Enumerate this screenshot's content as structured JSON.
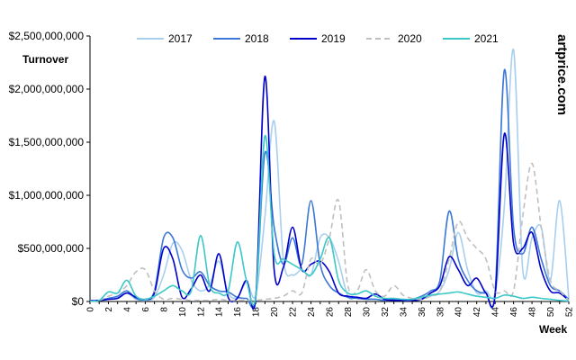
{
  "chart_data": {
    "type": "line",
    "ylabel": "Turnover",
    "xlabel": "Week",
    "watermark": "artprice.com",
    "ylim": [
      0,
      2500000000
    ],
    "yticks": [
      0,
      500000000,
      1000000000,
      1500000000,
      2000000000,
      2500000000
    ],
    "ytick_labels": [
      "$0",
      "$500,000,000",
      "$1,000,000,000",
      "$1,500,000,000",
      "$2,000,000,000",
      "$2,500,000,000"
    ],
    "xlim": [
      0,
      52
    ],
    "xticks": [
      0,
      2,
      4,
      6,
      8,
      10,
      12,
      14,
      16,
      18,
      20,
      22,
      24,
      26,
      28,
      30,
      32,
      34,
      36,
      38,
      40,
      42,
      44,
      46,
      48,
      50,
      52
    ],
    "grid": false,
    "legend_position": "top",
    "x": [
      0,
      1,
      2,
      3,
      4,
      5,
      6,
      7,
      8,
      9,
      10,
      11,
      12,
      13,
      14,
      15,
      16,
      17,
      18,
      19,
      20,
      21,
      22,
      23,
      24,
      25,
      26,
      27,
      28,
      29,
      30,
      31,
      32,
      33,
      34,
      35,
      36,
      37,
      38,
      39,
      40,
      41,
      42,
      43,
      44,
      45,
      46,
      47,
      48,
      49,
      50,
      51,
      52
    ],
    "series": [
      {
        "name": "2017",
        "color": "#a9cfee",
        "dash": false,
        "values": [
          5,
          10,
          20,
          40,
          80,
          20,
          10,
          40,
          250,
          550,
          480,
          200,
          100,
          160,
          380,
          80,
          40,
          180,
          60,
          800,
          1700,
          400,
          250,
          300,
          250,
          600,
          600,
          380,
          50,
          40,
          30,
          20,
          10,
          20,
          10,
          10,
          30,
          50,
          100,
          300,
          650,
          300,
          80,
          100,
          80,
          900,
          2370,
          300,
          600,
          700,
          200,
          950,
          30
        ]
      },
      {
        "name": "2018",
        "color": "#3c78d8",
        "dash": false,
        "values": [
          5,
          10,
          30,
          50,
          100,
          30,
          20,
          100,
          600,
          600,
          300,
          220,
          280,
          150,
          100,
          90,
          40,
          30,
          50,
          1400,
          700,
          350,
          600,
          350,
          950,
          350,
          150,
          80,
          40,
          30,
          20,
          20,
          10,
          20,
          10,
          20,
          50,
          100,
          200,
          850,
          400,
          200,
          100,
          80,
          100,
          2180,
          700,
          450,
          700,
          400,
          150,
          100,
          20
        ]
      },
      {
        "name": "2019",
        "color": "#0000c8",
        "dash": false,
        "values": [
          10,
          10,
          20,
          30,
          80,
          40,
          20,
          80,
          500,
          400,
          40,
          120,
          250,
          100,
          450,
          40,
          30,
          200,
          40,
          2120,
          300,
          320,
          700,
          300,
          350,
          380,
          280,
          80,
          50,
          40,
          30,
          70,
          20,
          10,
          10,
          10,
          20,
          80,
          150,
          420,
          300,
          150,
          220,
          80,
          60,
          1580,
          550,
          500,
          650,
          300,
          100,
          80,
          10
        ]
      },
      {
        "name": "2020",
        "color": "#bfbfbf",
        "dash": true,
        "values": [
          5,
          10,
          50,
          80,
          150,
          280,
          300,
          100,
          20,
          30,
          20,
          10,
          10,
          10,
          20,
          10,
          10,
          10,
          10,
          20,
          30,
          50,
          100,
          80,
          400,
          350,
          600,
          950,
          150,
          100,
          300,
          100,
          50,
          150,
          60,
          30,
          20,
          50,
          100,
          400,
          750,
          600,
          500,
          400,
          100,
          100,
          100,
          800,
          1300,
          700,
          200,
          100,
          10
        ]
      },
      {
        "name": "2021",
        "color": "#3cc8c8",
        "dash": false,
        "values": [
          5,
          10,
          90,
          80,
          200,
          50,
          20,
          50,
          100,
          150,
          100,
          100,
          620,
          150,
          80,
          100,
          560,
          200,
          50,
          1560,
          450,
          400,
          350,
          300,
          250,
          400,
          600,
          200,
          80,
          70,
          100,
          50,
          30,
          30,
          20,
          20,
          40,
          60,
          70,
          80,
          90,
          70,
          50,
          40,
          30,
          60,
          50,
          30,
          40,
          30,
          20,
          10,
          5
        ]
      }
    ]
  }
}
